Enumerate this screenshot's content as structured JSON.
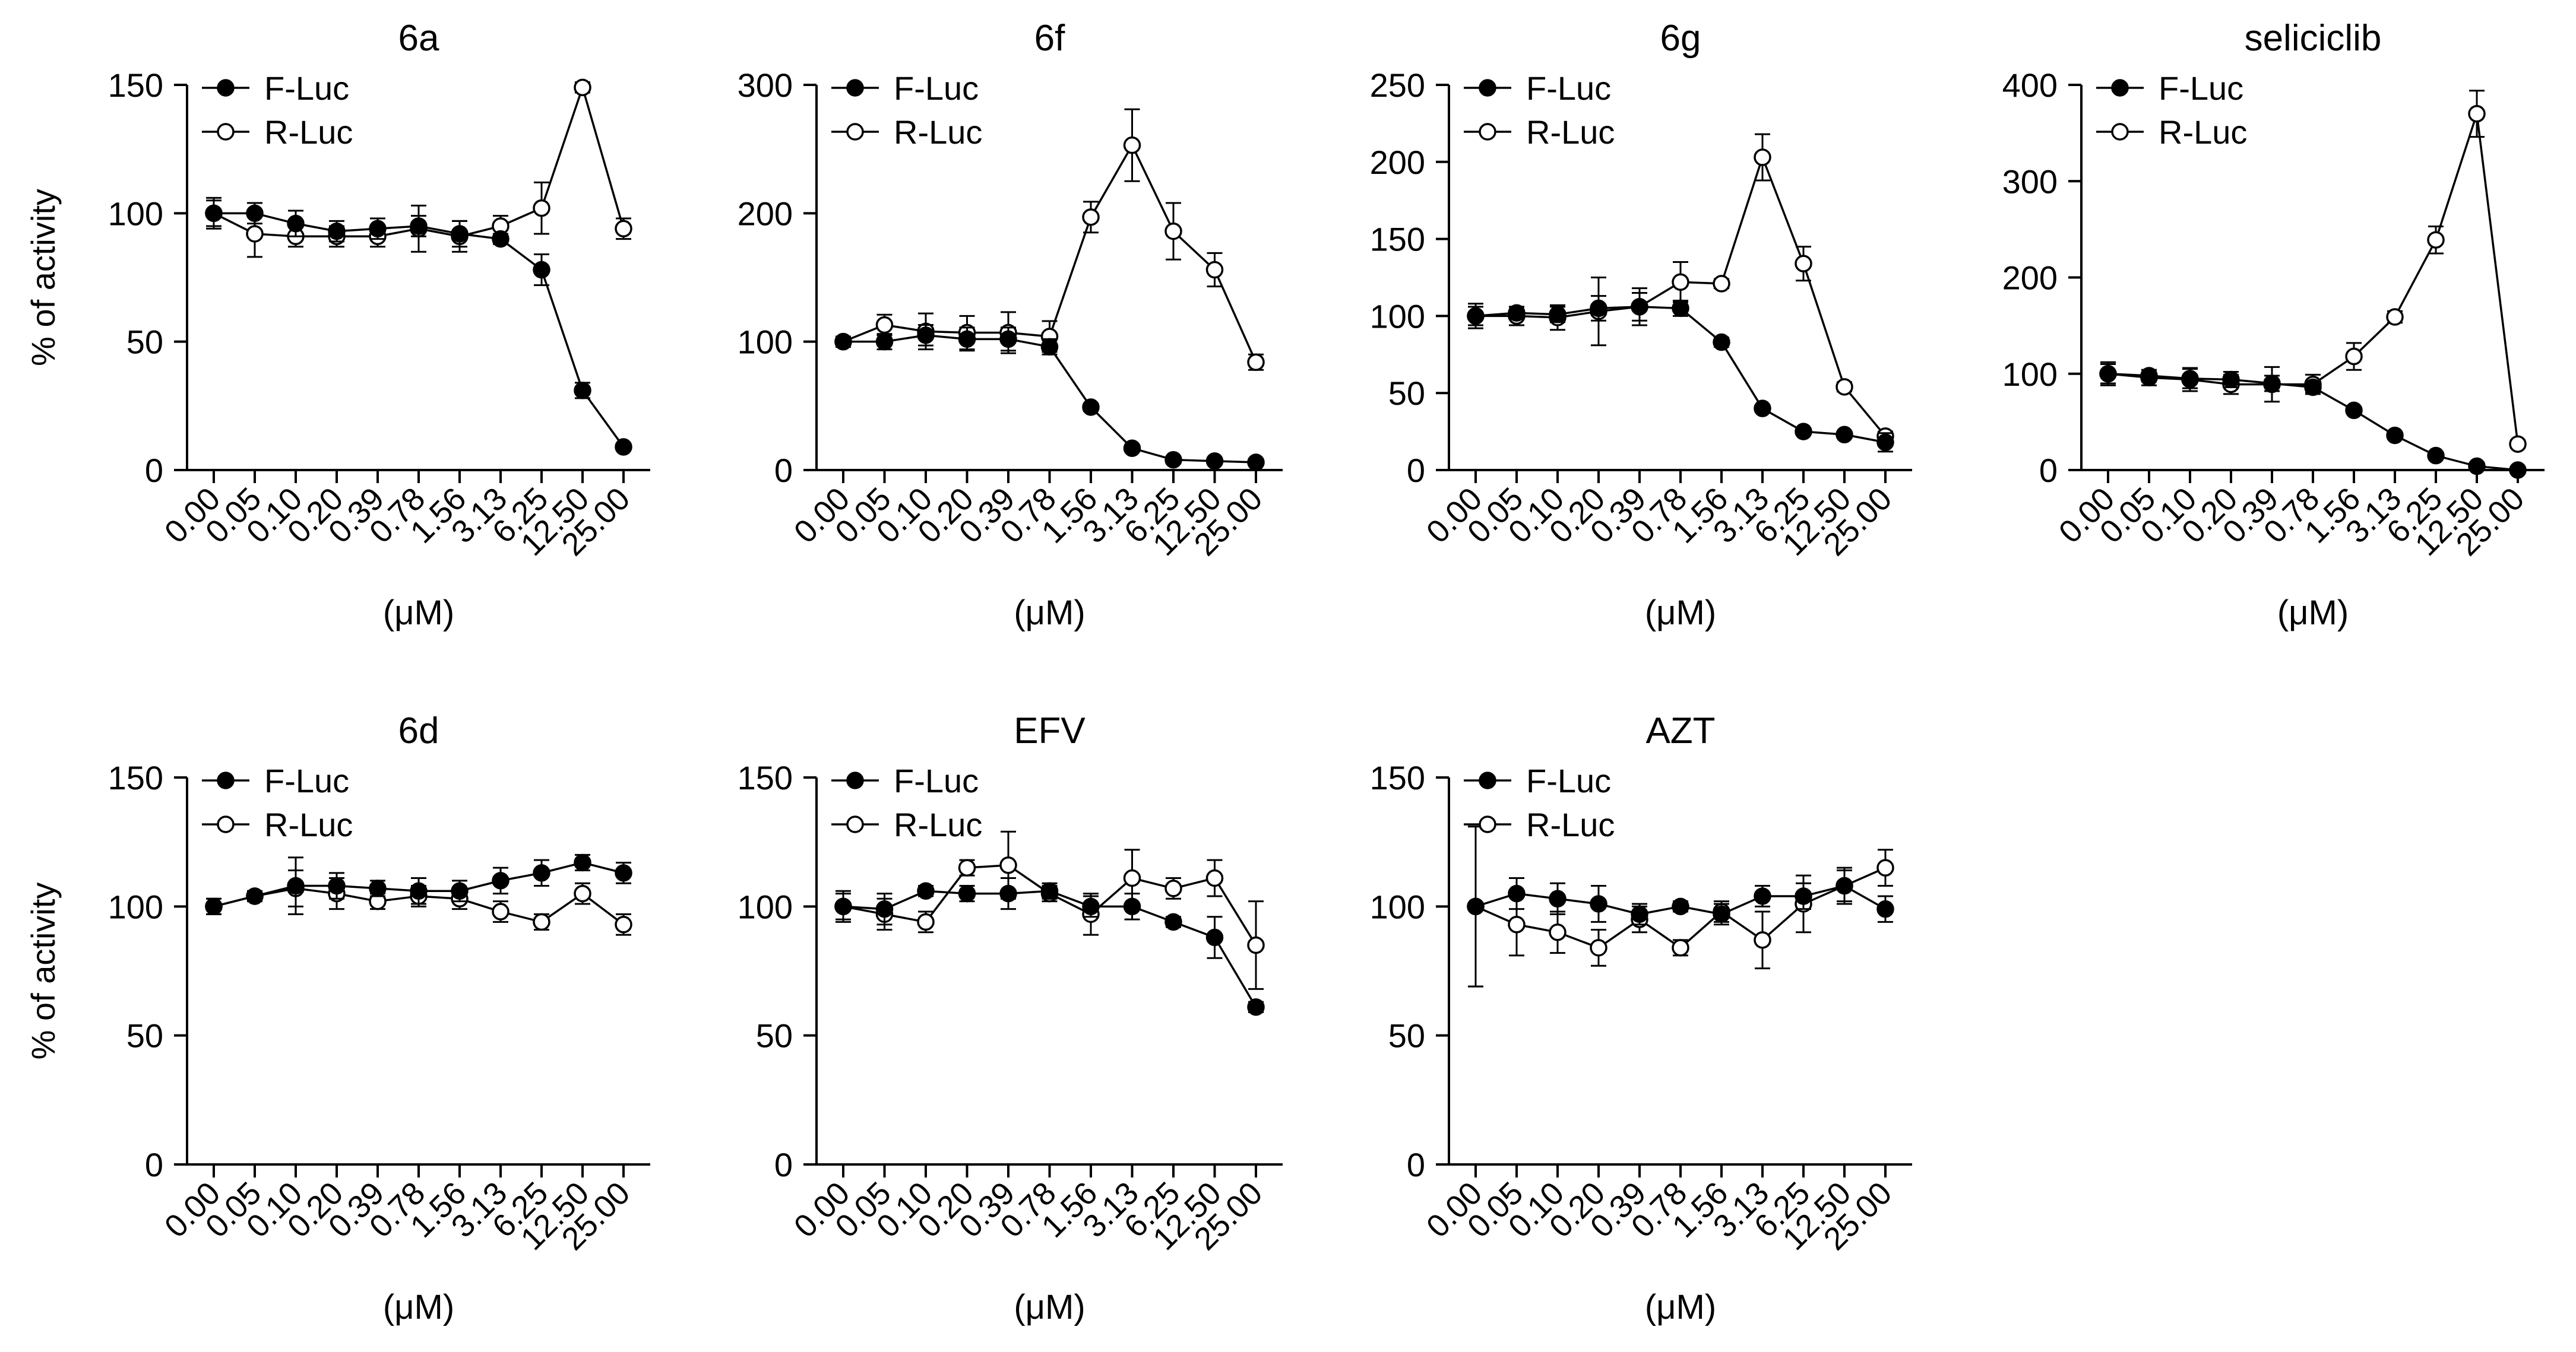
{
  "figure": {
    "ylabel": "% of activity",
    "xlabel": "(μM)"
  },
  "chart_data": [
    {
      "type": "line",
      "title": "6a",
      "xlabel": "(μM)",
      "ylabel": "% of activity",
      "ylim": [
        0,
        150
      ],
      "yticks": [
        0,
        50,
        100,
        150
      ],
      "categories": [
        "0.00",
        "0.05",
        "0.10",
        "0.20",
        "0.39",
        "0.78",
        "1.56",
        "3.13",
        "6.25",
        "12.50",
        "25.00"
      ],
      "legend": "top-left",
      "series": [
        {
          "name": "F-Luc",
          "marker": "filled",
          "values": [
            100,
            100,
            96,
            93,
            94,
            95,
            92,
            90,
            78,
            31,
            9
          ],
          "errors": [
            6,
            4,
            5,
            4,
            4,
            4,
            5,
            2,
            6,
            3,
            1
          ]
        },
        {
          "name": "R-Luc",
          "marker": "open",
          "values": [
            100,
            92,
            91,
            91,
            91,
            94,
            91,
            95,
            102,
            149,
            94
          ],
          "errors": [
            5,
            9,
            4,
            4,
            4,
            9,
            6,
            4,
            10,
            2,
            4
          ]
        }
      ]
    },
    {
      "type": "line",
      "title": "6f",
      "xlabel": "(μM)",
      "ylabel": "% of activity",
      "ylim": [
        0,
        300
      ],
      "yticks": [
        0,
        100,
        200,
        300
      ],
      "categories": [
        "0.00",
        "0.05",
        "0.10",
        "0.20",
        "0.39",
        "0.78",
        "1.56",
        "3.13",
        "6.25",
        "12.50",
        "25.00"
      ],
      "legend": "top-left",
      "series": [
        {
          "name": "F-Luc",
          "marker": "filled",
          "values": [
            100,
            100,
            105,
            102,
            102,
            96,
            49,
            17,
            8,
            7,
            6
          ],
          "errors": [
            4,
            6,
            8,
            9,
            9,
            6,
            3,
            2,
            2,
            2,
            2
          ]
        },
        {
          "name": "R-Luc",
          "marker": "open",
          "values": [
            100,
            113,
            108,
            107,
            107,
            104,
            197,
            253,
            186,
            156,
            84
          ],
          "errors": [
            4,
            8,
            14,
            13,
            16,
            12,
            12,
            28,
            22,
            13,
            6
          ]
        }
      ]
    },
    {
      "type": "line",
      "title": "6g",
      "xlabel": "(μM)",
      "ylabel": "% of activity",
      "ylim": [
        0,
        250
      ],
      "yticks": [
        0,
        50,
        100,
        150,
        200,
        250
      ],
      "categories": [
        "0.00",
        "0.05",
        "0.10",
        "0.20",
        "0.39",
        "0.78",
        "1.56",
        "3.13",
        "6.25",
        "12.50",
        "25.00"
      ],
      "legend": "top-left",
      "series": [
        {
          "name": "F-Luc",
          "marker": "filled",
          "values": [
            100,
            102,
            101,
            105,
            106,
            105,
            83,
            40,
            25,
            23,
            18
          ],
          "errors": [
            8,
            4,
            5,
            8,
            9,
            5,
            3,
            2,
            2,
            2,
            6
          ]
        },
        {
          "name": "R-Luc",
          "marker": "open",
          "values": [
            100,
            100,
            99,
            103,
            106,
            122,
            121,
            203,
            134,
            54,
            22
          ],
          "errors": [
            6,
            6,
            8,
            22,
            12,
            13,
            3,
            15,
            11,
            3,
            3
          ]
        }
      ]
    },
    {
      "type": "line",
      "title": "seliciclib",
      "xlabel": "(μM)",
      "ylabel": "% of activity",
      "ylim": [
        0,
        400
      ],
      "yticks": [
        0,
        100,
        200,
        300,
        400
      ],
      "categories": [
        "0.00",
        "0.05",
        "0.10",
        "0.20",
        "0.39",
        "0.78",
        "1.56",
        "3.13",
        "6.25",
        "12.50",
        "25.00"
      ],
      "legend": "top-left",
      "series": [
        {
          "name": "F-Luc",
          "marker": "filled",
          "values": [
            100,
            98,
            95,
            94,
            90,
            86,
            62,
            36,
            15,
            4,
            0
          ],
          "errors": [
            10,
            6,
            10,
            8,
            8,
            5,
            3,
            3,
            3,
            2,
            1
          ]
        },
        {
          "name": "R-Luc",
          "marker": "open",
          "values": [
            100,
            96,
            94,
            89,
            89,
            89,
            118,
            159,
            239,
            370,
            27
          ],
          "errors": [
            12,
            8,
            12,
            10,
            18,
            10,
            14,
            6,
            14,
            24,
            4
          ]
        }
      ]
    },
    {
      "type": "line",
      "title": "6d",
      "xlabel": "(μM)",
      "ylabel": "% of activity",
      "ylim": [
        0,
        150
      ],
      "yticks": [
        0,
        50,
        100,
        150
      ],
      "categories": [
        "0.00",
        "0.05",
        "0.10",
        "0.20",
        "0.39",
        "0.78",
        "1.56",
        "3.13",
        "6.25",
        "12.50",
        "25.00"
      ],
      "legend": "top-left",
      "series": [
        {
          "name": "F-Luc",
          "marker": "filled",
          "values": [
            100,
            104,
            108,
            108,
            107,
            106,
            106,
            110,
            113,
            117,
            113
          ],
          "errors": [
            3,
            1,
            11,
            5,
            3,
            5,
            4,
            5,
            5,
            3,
            4
          ]
        },
        {
          "name": "R-Luc",
          "marker": "open",
          "values": [
            100,
            104,
            107,
            105,
            102,
            104,
            103,
            98,
            94,
            105,
            93
          ],
          "errors": [
            3,
            2,
            7,
            6,
            3,
            4,
            4,
            4,
            3,
            4,
            4
          ]
        }
      ]
    },
    {
      "type": "line",
      "title": "EFV",
      "xlabel": "(μM)",
      "ylabel": "% of activity",
      "ylim": [
        0,
        150
      ],
      "yticks": [
        0,
        50,
        100,
        150
      ],
      "categories": [
        "0.00",
        "0.05",
        "0.10",
        "0.20",
        "0.39",
        "0.78",
        "1.56",
        "3.13",
        "6.25",
        "12.50",
        "25.00"
      ],
      "legend": "top-left",
      "series": [
        {
          "name": "F-Luc",
          "marker": "filled",
          "values": [
            100,
            99,
            106,
            105,
            105,
            106,
            100,
            100,
            94,
            88,
            61
          ],
          "errors": [
            6,
            6,
            2,
            3,
            6,
            3,
            4,
            5,
            2,
            8,
            2
          ]
        },
        {
          "name": "R-Luc",
          "marker": "open",
          "values": [
            100,
            97,
            94,
            115,
            116,
            105,
            97,
            111,
            107,
            111,
            85
          ],
          "errors": [
            5,
            6,
            4,
            3,
            13,
            3,
            8,
            11,
            4,
            7,
            17
          ]
        }
      ]
    },
    {
      "type": "line",
      "title": "AZT",
      "xlabel": "(μM)",
      "ylabel": "% of activity",
      "ylim": [
        0,
        150
      ],
      "yticks": [
        0,
        50,
        100,
        150
      ],
      "categories": [
        "0.00",
        "0.05",
        "0.10",
        "0.20",
        "0.39",
        "0.78",
        "1.56",
        "3.13",
        "6.25",
        "12.50",
        "25.00"
      ],
      "legend": "top-left",
      "series": [
        {
          "name": "F-Luc",
          "marker": "filled",
          "values": [
            100,
            105,
            103,
            101,
            97,
            100,
            97,
            104,
            104,
            108,
            99
          ],
          "errors": [
            31,
            6,
            6,
            7,
            4,
            2,
            4,
            4,
            5,
            7,
            5
          ]
        },
        {
          "name": "R-Luc",
          "marker": "open",
          "values": [
            100,
            93,
            90,
            84,
            95,
            84,
            98,
            87,
            101,
            108,
            115
          ],
          "errors": [
            31,
            12,
            8,
            7,
            5,
            3,
            4,
            11,
            11,
            6,
            7
          ]
        }
      ]
    }
  ]
}
